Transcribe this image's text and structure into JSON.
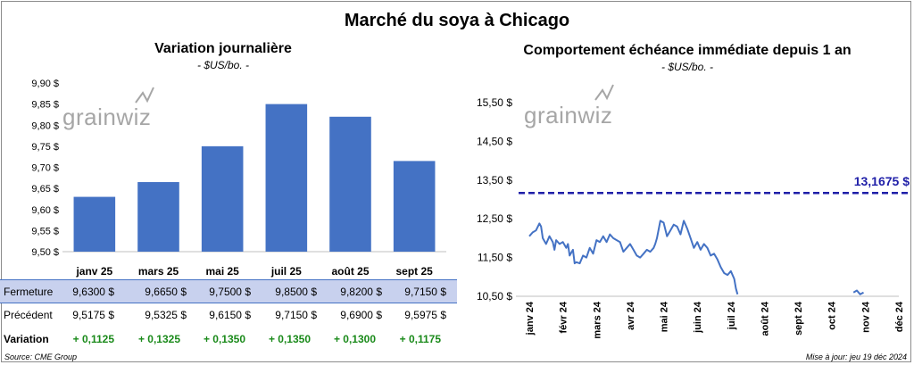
{
  "title": "Marché du soya à Chicago",
  "left_chart": {
    "title": "Variation journalière",
    "unit": "- $US/bo. -"
  },
  "right_chart": {
    "title": "Comportement échéance immédiate depuis 1 an",
    "unit": "- $US/bo. -"
  },
  "logo_text": "grainwiz",
  "table": {
    "close_label": "Fermeture",
    "prev_label": "Précédent",
    "var_label": "Variation",
    "close": [
      "9,6300  $",
      "9,6650  $",
      "9,7500  $",
      "9,8500  $",
      "9,8200  $",
      "9,7150  $"
    ],
    "prev": [
      "9,5175  $",
      "9,5325  $",
      "9,6150  $",
      "9,7150  $",
      "9,6900  $",
      "9,5975  $"
    ],
    "var": [
      "+ 0,1125",
      "+ 0,1325",
      "+ 0,1350",
      "+ 0,1350",
      "+ 0,1300",
      "+ 0,1175"
    ]
  },
  "footer": {
    "source": "Source: CME Group",
    "update": "Mise à jour: jeu 19 déc 2024"
  },
  "colors": {
    "bar": "#4472c4",
    "line": "#4472c4",
    "ref_line": "#1f1fa8",
    "positive": "#1a8a1a",
    "close_row": "#c8d1ee"
  },
  "chart_data": [
    {
      "type": "bar",
      "title": "Variation journalière",
      "ylabel": "- $US/bo. -",
      "categories": [
        "janv 25",
        "mars 25",
        "mai 25",
        "juil 25",
        "août 25",
        "sept 25"
      ],
      "values": [
        9.63,
        9.665,
        9.75,
        9.85,
        9.82,
        9.715
      ],
      "ylim": [
        9.5,
        9.9
      ],
      "yticks": [
        9.5,
        9.55,
        9.6,
        9.65,
        9.7,
        9.75,
        9.8,
        9.85,
        9.9
      ],
      "ytick_labels": [
        "9,50 $",
        "9,55 $",
        "9,60 $",
        "9,65 $",
        "9,70 $",
        "9,75 $",
        "9,80 $",
        "9,85 $",
        "9,90 $"
      ],
      "grid": false
    },
    {
      "type": "line",
      "title": "Comportement échéance immédiate depuis 1 an",
      "ylabel": "- $US/bo. -",
      "ylim": [
        10.5,
        15.5
      ],
      "yticks": [
        10.5,
        11.5,
        12.5,
        13.5,
        14.5,
        15.5
      ],
      "ytick_labels": [
        "10,50 $",
        "11,50 $",
        "12,50 $",
        "13,50 $",
        "14,50 $",
        "15,50 $"
      ],
      "xticks": [
        "janv 24",
        "févr 24",
        "mars 24",
        "avr 24",
        "mai 24",
        "juin 24",
        "juil 24",
        "août 24",
        "sept 24",
        "oct 24",
        "nov 24",
        "déc 24"
      ],
      "reference": {
        "value": 13.1675,
        "label": "13,1675 $",
        "style": "dashed"
      },
      "series": [
        {
          "x": [
            0,
            0.1,
            0.2,
            0.3,
            0.35,
            0.4,
            0.5,
            0.6,
            0.7,
            0.75,
            0.8,
            0.9,
            1.0,
            1.1,
            1.15,
            1.2,
            1.3,
            1.35,
            1.4,
            1.5,
            1.6,
            1.7,
            1.8,
            1.9,
            2.0,
            2.1,
            2.2,
            2.3,
            2.4,
            2.5,
            2.6,
            2.7,
            2.8,
            2.9,
            3.0,
            3.1,
            3.2,
            3.3,
            3.4,
            3.5,
            3.6,
            3.7,
            3.75,
            3.8,
            3.9,
            4.0,
            4.1,
            4.2,
            4.3,
            4.4,
            4.5,
            4.6,
            4.7,
            4.8,
            4.9,
            5.0,
            5.1,
            5.2,
            5.3,
            5.4,
            5.5,
            5.6,
            5.7,
            5.8,
            5.9,
            6.0,
            6.1,
            6.15,
            6.2
          ],
          "y": [
            12.05,
            12.15,
            12.2,
            12.38,
            12.3,
            12.0,
            11.85,
            12.05,
            11.9,
            11.7,
            11.95,
            11.85,
            11.9,
            11.75,
            11.85,
            11.55,
            11.7,
            11.35,
            11.38,
            11.35,
            11.55,
            11.5,
            11.75,
            11.6,
            11.95,
            11.9,
            12.05,
            11.9,
            12.1,
            12.0,
            11.95,
            11.9,
            11.65,
            11.75,
            11.85,
            11.7,
            11.55,
            11.5,
            11.6,
            11.7,
            11.65,
            11.75,
            11.85,
            12.0,
            12.45,
            12.4,
            12.05,
            12.2,
            12.35,
            12.3,
            12.1,
            12.45,
            12.25,
            12.0,
            11.75,
            11.9,
            11.7,
            11.85,
            11.75,
            11.55,
            11.6,
            11.45,
            11.25,
            11.1,
            11.05,
            11.15,
            10.95,
            10.7,
            10.55
          ]
        },
        {
          "x": [
            9.65,
            9.75,
            9.85,
            9.95
          ],
          "y": [
            10.6,
            10.65,
            10.55,
            10.6
          ]
        }
      ]
    }
  ]
}
